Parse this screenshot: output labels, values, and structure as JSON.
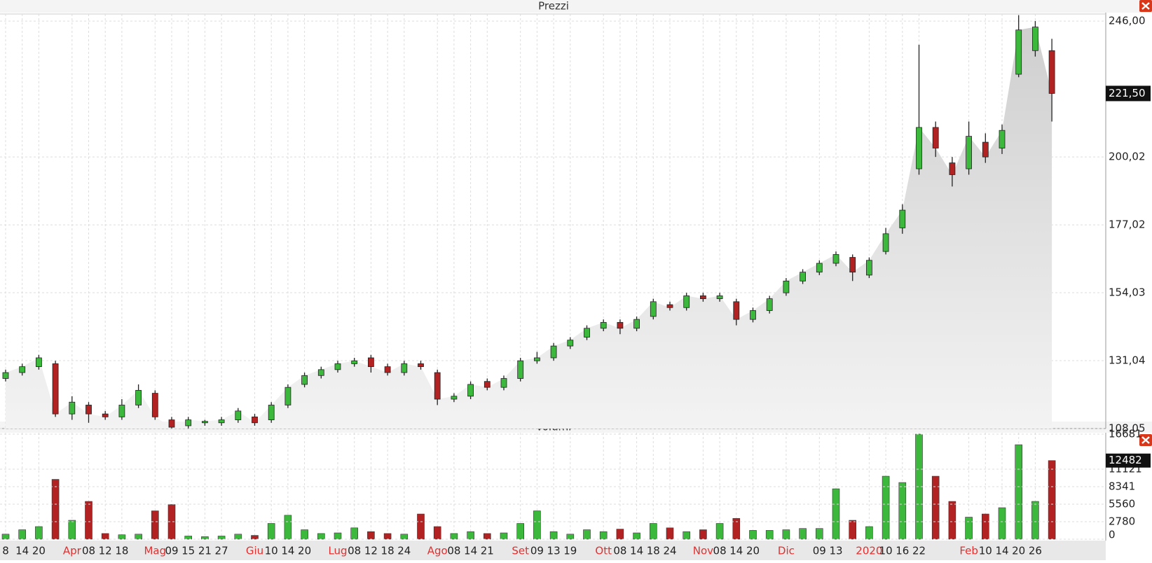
{
  "chart_data": [
    {
      "type": "candlestick",
      "title": "Prezzi",
      "categories": [
        "8",
        "14",
        "20",
        null,
        "Apr",
        "08",
        "12",
        "18",
        null,
        "Mag",
        "09",
        "15",
        "21",
        "27",
        null,
        "Giu",
        "10",
        "14",
        "20",
        null,
        "Lug",
        "08",
        "12",
        "18",
        "24",
        null,
        "Ago",
        "08",
        "14",
        "21",
        null,
        "Set",
        "09",
        "13",
        "19",
        null,
        "Ott",
        "08",
        "14",
        "18",
        "24",
        null,
        "Nov",
        "08",
        "14",
        "20",
        null,
        "Dic",
        null,
        "09",
        "13",
        null,
        "2020",
        "10",
        "16",
        "22",
        null,
        null,
        "Feb",
        "10",
        "14",
        "20",
        "26",
        null
      ],
      "open": [
        125,
        127,
        129,
        130,
        113,
        116,
        113,
        112,
        116,
        120,
        111,
        109,
        110,
        110,
        111,
        112,
        111,
        116,
        123,
        126,
        128,
        130,
        132,
        129,
        127,
        130,
        127,
        118,
        119,
        124,
        122,
        125,
        131,
        132,
        136,
        139,
        142,
        144,
        142,
        146,
        150,
        149,
        153,
        152,
        151,
        145,
        148,
        154,
        158,
        161,
        164,
        166,
        160,
        168,
        176,
        196,
        210,
        198,
        196,
        205,
        203,
        228,
        236,
        236
      ],
      "high": [
        128,
        130,
        133,
        131,
        119,
        117,
        114,
        118,
        123,
        121,
        112,
        112,
        111,
        112,
        115,
        113,
        117,
        123,
        127,
        129,
        131,
        132,
        133,
        130,
        131,
        131,
        128,
        120,
        124,
        125,
        126,
        132,
        134,
        137,
        139,
        143,
        145,
        145,
        146,
        152,
        151,
        154,
        154,
        154,
        152,
        149,
        153,
        159,
        162,
        165,
        168,
        167,
        166,
        176,
        184,
        238,
        212,
        200,
        212,
        208,
        211,
        248,
        246,
        240
      ],
      "low": [
        124,
        126,
        128,
        112,
        111,
        110,
        111,
        111,
        115,
        111,
        108.1,
        108.1,
        109,
        109,
        110,
        109,
        110,
        115,
        122,
        125,
        127,
        129,
        127,
        126,
        126,
        128,
        116,
        117,
        118,
        121,
        121,
        124,
        130,
        131,
        135,
        138,
        141,
        140,
        141,
        145,
        148,
        148,
        151,
        151,
        143,
        144,
        147,
        153,
        157,
        160,
        163,
        158,
        159,
        167,
        174,
        194,
        200,
        190,
        194,
        198,
        201,
        227,
        234,
        212
      ],
      "close": [
        127,
        129,
        132,
        113,
        117,
        113,
        112,
        116,
        121,
        112,
        108.5,
        111,
        110.5,
        111,
        114,
        110,
        116,
        122,
        126,
        128,
        130,
        131,
        129,
        127,
        130,
        129,
        118,
        119,
        123,
        122,
        125,
        131,
        132,
        136,
        138,
        142,
        144,
        142,
        145,
        151,
        149,
        153,
        152,
        153,
        145,
        148,
        152,
        158,
        161,
        164,
        167,
        161,
        165,
        174,
        182,
        210,
        203,
        194,
        207,
        200,
        209,
        243,
        244,
        221.5
      ],
      "up_color": "#3cb83c",
      "down_color": "#b22222",
      "ylim": [
        108.05,
        248.4
      ],
      "yticks": [
        {
          "value": 108.05,
          "label": "108,05"
        },
        {
          "value": 131.04,
          "label": "131,04"
        },
        {
          "value": 154.03,
          "label": "154,03"
        },
        {
          "value": 177.02,
          "label": "177,02"
        },
        {
          "value": 200.02,
          "label": "200,02"
        },
        {
          "value": 246,
          "label": "246,00"
        }
      ],
      "current": {
        "value": 221.5,
        "label": "221,50"
      },
      "grid": true
    },
    {
      "type": "bar",
      "title": "Volumi",
      "values": [
        800,
        1500,
        2000,
        9500,
        3000,
        6000,
        900,
        700,
        800,
        4500,
        5500,
        500,
        400,
        500,
        800,
        600,
        2500,
        3800,
        1500,
        900,
        1000,
        1800,
        1200,
        900,
        800,
        4000,
        2000,
        900,
        1200,
        900,
        1000,
        2500,
        4500,
        1200,
        800,
        1500,
        1200,
        1600,
        1000,
        2500,
        1800,
        1200,
        1500,
        2500,
        3300,
        1400,
        1400,
        1500,
        1700,
        1700,
        8000,
        3000,
        2000,
        10000,
        9000,
        16681,
        10000,
        6000,
        3500,
        4000,
        5000,
        15000,
        6000,
        12482
      ],
      "ylim": [
        0,
        16900
      ],
      "yticks": [
        0,
        2780,
        5560,
        8341,
        11121,
        16681
      ],
      "current": 12482,
      "grid": true
    }
  ]
}
